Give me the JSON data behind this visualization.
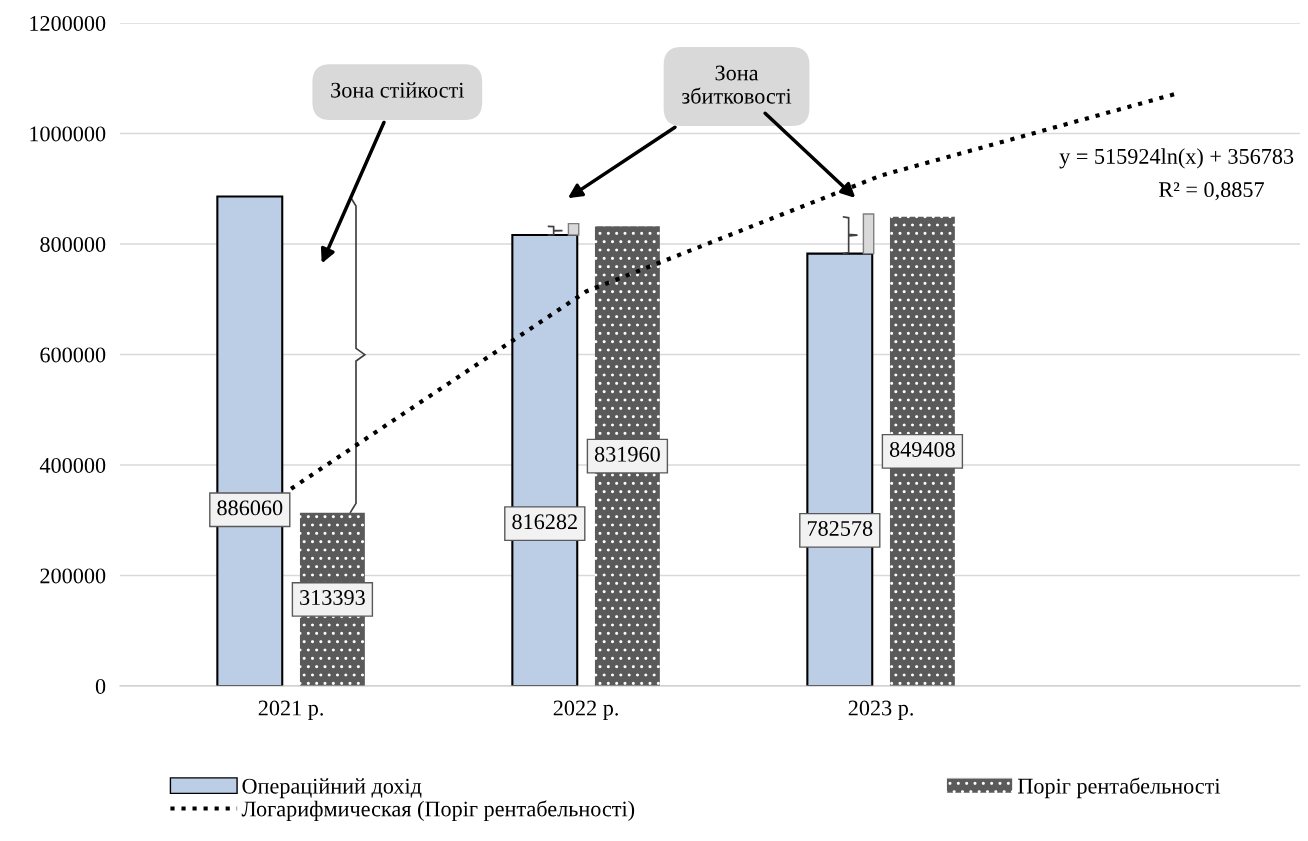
{
  "chart_data": {
    "type": "bar",
    "categories": [
      "2021 р.",
      "2022 р.",
      "2023 р.",
      null
    ],
    "series": [
      {
        "name": "Операційний дохід",
        "color": "#bccde6",
        "values": [
          886060,
          816282,
          782578,
          null
        ],
        "value_labels": [
          "886060",
          "816282",
          "782578",
          null
        ]
      },
      {
        "name": "Поріг рентабельності",
        "color": "#5a5a5a",
        "values": [
          313393,
          831960,
          849408,
          null
        ],
        "value_labels": [
          "313393",
          "831960",
          "849408",
          null
        ]
      },
      {
        "name": "Логарифмическая (Поріг рентабельності)",
        "type": "line",
        "color": "#000000",
        "line_style": "dotted",
        "marker": "none",
        "values": [
          357000,
          714000,
          924000,
          1072000
        ]
      }
    ],
    "ylim": [
      0,
      1200000
    ],
    "yticks": [
      0,
      200000,
      400000,
      600000,
      800000,
      1000000,
      1200000
    ],
    "grid": "y",
    "legend": "bottom",
    "annotations": [
      "Зона стійкості",
      "Зона\nзбитковості",
      "y = 515924ln(x) + 356783",
      "R² = 0,8857"
    ]
  }
}
